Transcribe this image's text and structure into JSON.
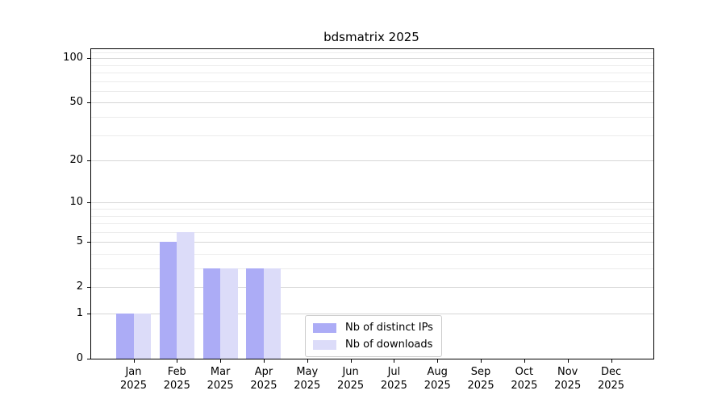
{
  "chart_data": {
    "type": "bar",
    "title": "bdsmatrix 2025",
    "categories": [
      "Jan 2025",
      "Feb 2025",
      "Mar 2025",
      "Apr 2025",
      "May 2025",
      "Jun 2025",
      "Jul 2025",
      "Aug 2025",
      "Sep 2025",
      "Oct 2025",
      "Nov 2025",
      "Dec 2025"
    ],
    "series": [
      {
        "name": "Nb of distinct IPs",
        "color": "#acacf6",
        "values": [
          1,
          5,
          3,
          3,
          0,
          0,
          0,
          0,
          0,
          0,
          0,
          0
        ]
      },
      {
        "name": "Nb of downloads",
        "color": "#dcdcf9",
        "values": [
          1,
          6,
          3,
          3,
          0,
          0,
          0,
          0,
          0,
          0,
          0,
          0
        ]
      }
    ],
    "xlabel": "",
    "ylabel": "",
    "yscale": "log1p",
    "ylim": [
      0,
      115
    ],
    "y_major_ticks": [
      0,
      1,
      2,
      5,
      10,
      20,
      50,
      100
    ],
    "y_minor_ticks": [
      3,
      4,
      6,
      7,
      8,
      9,
      30,
      40,
      60,
      70,
      80,
      90,
      110
    ],
    "grid": "horizontal",
    "legend": {
      "position": "lower-center"
    }
  },
  "colors": {
    "background": "#ffffff",
    "grid_major": "#d6d6d6",
    "grid_minor": "#ececec",
    "axis": "#000000",
    "text": "#000000",
    "legend_border": "#cccccc"
  }
}
